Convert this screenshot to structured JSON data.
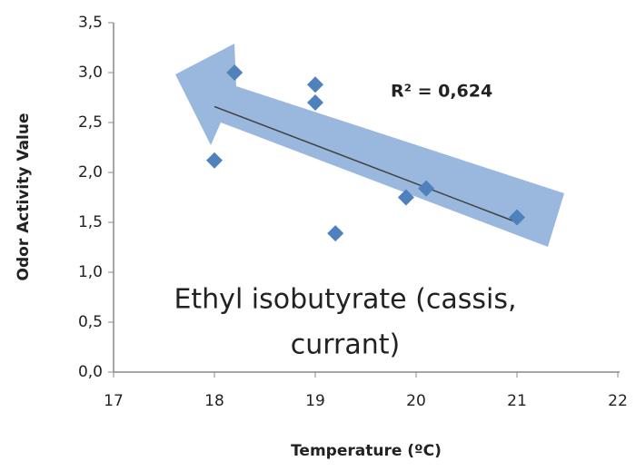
{
  "chart_data": {
    "type": "scatter",
    "x_label": "Temperature (ºC)",
    "y_label": "Odor Activity Value",
    "annotation": [
      "Ethyl isobutyrate (cassis,",
      "currant)"
    ],
    "r2_label": "R² = 0,624",
    "series": [
      {
        "name": null,
        "color": "#4f81bd",
        "x": [
          18.2,
          18.0,
          19.0,
          19.0,
          19.2,
          19.9,
          20.1,
          21.0
        ],
        "values": [
          3.0,
          2.12,
          2.88,
          2.7,
          1.39,
          1.75,
          1.84,
          1.55
        ]
      }
    ],
    "trendline": {
      "x": [
        18,
        21
      ],
      "y": [
        2.66,
        1.5
      ],
      "color": "#404040"
    },
    "xlim": [
      17,
      22
    ],
    "xticks": [
      17,
      18,
      19,
      20,
      21,
      22
    ],
    "ylim": [
      0,
      3.5
    ],
    "yticks": [
      {
        "value": 0,
        "label": "0,0"
      },
      {
        "value": 0.5,
        "label": "0,5"
      },
      {
        "value": 1,
        "label": "1,0"
      },
      {
        "value": 1.5,
        "label": "1,5"
      },
      {
        "value": 2,
        "label": "2,0"
      },
      {
        "value": 2.5,
        "label": "2,5"
      },
      {
        "value": 3,
        "label": "3,0"
      },
      {
        "value": 3.5,
        "label": "3,5"
      }
    ],
    "grid": false
  }
}
